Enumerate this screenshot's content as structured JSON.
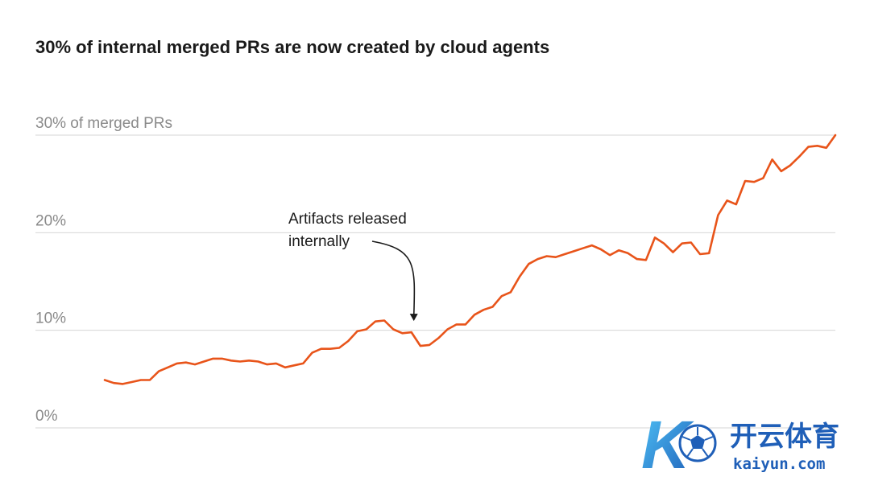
{
  "title": "30% of internal merged PRs are now created by cloud agents",
  "colors": {
    "series": "#e8541a",
    "grid": "#d6d6d6",
    "tick": "#8a8a8a",
    "watermark": "#1f5fb8"
  },
  "watermark": {
    "logo_letter": "K",
    "name_cn": "开云体育",
    "site": "kaiyun.com"
  },
  "chart_data": {
    "type": "line",
    "title": "30% of internal merged PRs are now created by cloud agents",
    "ylim": [
      0,
      30
    ],
    "ytick_values": [
      0,
      10,
      20,
      30
    ],
    "ytick_labels": [
      "0%",
      "10%",
      "20%",
      "30% of merged PRs"
    ],
    "grid": true,
    "x_axis_labels": "none",
    "annotation": {
      "lines": [
        "Artifacts released",
        "internally"
      ],
      "target_index": 34
    },
    "series": [
      {
        "values": [
          4.9,
          4.6,
          4.5,
          4.7,
          4.9,
          4.9,
          5.8,
          6.2,
          6.6,
          6.7,
          6.5,
          6.8,
          7.1,
          7.1,
          6.9,
          6.8,
          6.9,
          6.8,
          6.5,
          6.6,
          6.2,
          6.4,
          6.6,
          7.7,
          8.1,
          8.1,
          8.2,
          8.9,
          9.9,
          10.1,
          10.9,
          11.0,
          10.1,
          9.7,
          9.8,
          8.4,
          8.5,
          9.2,
          10.1,
          10.6,
          10.6,
          11.6,
          12.1,
          12.4,
          13.5,
          13.9,
          15.5,
          16.8,
          17.3,
          17.6,
          17.5,
          17.8,
          18.1,
          18.4,
          18.7,
          18.3,
          17.7,
          18.2,
          17.9,
          17.3,
          17.2,
          19.5,
          18.9,
          18.0,
          18.9,
          19.0,
          17.8,
          17.9,
          21.8,
          23.3,
          22.9,
          25.3,
          25.2,
          25.6,
          27.5,
          26.3,
          26.9,
          27.8,
          28.8,
          28.9,
          28.7,
          30.0
        ]
      }
    ]
  }
}
